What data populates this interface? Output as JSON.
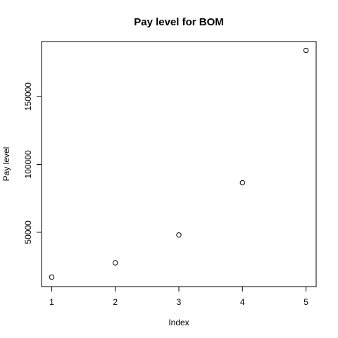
{
  "chart_data": {
    "type": "scatter",
    "title": "Pay level for  BOM",
    "xlabel": "Index",
    "ylabel": "Pay level",
    "x": [
      1,
      2,
      3,
      4,
      5
    ],
    "y": [
      17000,
      27500,
      48000,
      86500,
      184000
    ],
    "xlim": [
      0.84,
      5.16
    ],
    "ylim": [
      10000,
      190500
    ],
    "xticks": [
      1,
      2,
      3,
      4,
      5
    ],
    "yticks": [
      50000,
      100000,
      150000
    ],
    "grid": false,
    "marker": "open-circle"
  }
}
